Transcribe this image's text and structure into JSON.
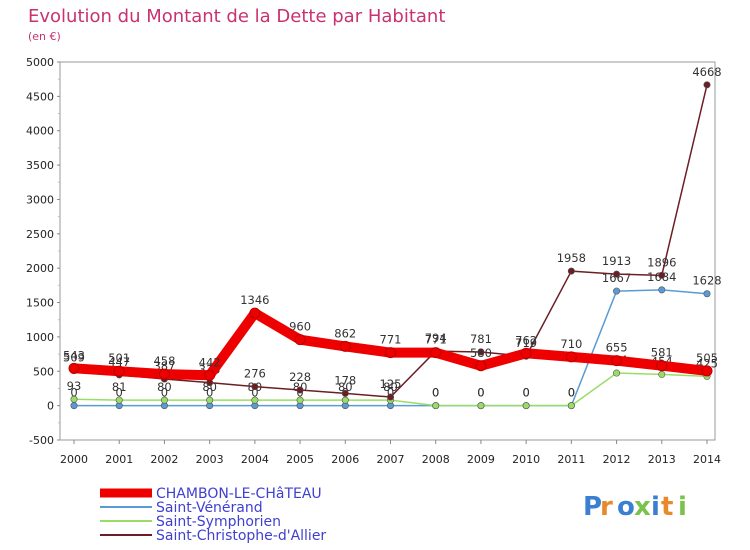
{
  "chart_data": {
    "type": "line",
    "title": "Evolution du Montant de la Dette par Habitant",
    "subtitle": "(en €)",
    "ylim": [
      -500,
      5000
    ],
    "yticks": [
      -500,
      0,
      500,
      1000,
      1500,
      2000,
      2500,
      3000,
      3500,
      4000,
      4500,
      5000
    ],
    "x": [
      "2000",
      "2001",
      "2002",
      "2003",
      "2004",
      "2005",
      "2006",
      "2007",
      "2008",
      "2009",
      "2010",
      "2011",
      "2012",
      "2013",
      "2014"
    ],
    "series": [
      {
        "name": "Saint-Vénérand",
        "color": "#5b9bd5",
        "values": [
          0,
          0,
          0,
          0,
          0,
          0,
          0,
          0,
          0,
          0,
          0,
          0,
          1667,
          1684,
          1628
        ],
        "labels": [
          "0",
          "0",
          "0",
          "0",
          "0",
          "0",
          "0",
          "0",
          "0",
          "0",
          "0",
          "0",
          "1667",
          "1684",
          "1628"
        ]
      },
      {
        "name": "Saint-Symphorien",
        "color": "#99dd66",
        "values": [
          93,
          81,
          80,
          80,
          80,
          80,
          80,
          80,
          0,
          0,
          0,
          0,
          474,
          454,
          425
        ],
        "labels": [
          "93",
          "81",
          "80",
          "80",
          "80",
          "80",
          "80",
          "80",
          "0",
          "0",
          "0",
          "0",
          "474",
          "454",
          "425"
        ]
      },
      {
        "name": "Saint-Christophe-d'Allier",
        "color": "#6b1f24",
        "values": [
          509,
          447,
          387,
          335,
          276,
          228,
          178,
          125,
          794,
          781,
          719,
          1958,
          1913,
          1896,
          4668
        ],
        "labels": [
          "509",
          "447",
          "387",
          "335",
          "276",
          "228",
          "178",
          "125",
          "794",
          "781",
          "719",
          "1958",
          "1913",
          "1896",
          "4668"
        ]
      },
      {
        "name": "CHAMBON-LE-CHâTEAU",
        "color": "#ee0000",
        "values": [
          543,
          501,
          458,
          442,
          1346,
          960,
          862,
          771,
          771,
          580,
          762,
          710,
          655,
          581,
          505
        ],
        "labels": [
          "543",
          "501",
          "458",
          "442",
          "1346",
          "960",
          "862",
          "771",
          "771",
          "580",
          "762",
          "710",
          "655",
          "581",
          "505"
        ]
      }
    ],
    "legend": [
      "CHAMBON-LE-CHâTEAU",
      "Saint-Vénérand",
      "Saint-Symphorien",
      "Saint-Christophe-d'Allier"
    ],
    "watermark": "Proxiti"
  }
}
